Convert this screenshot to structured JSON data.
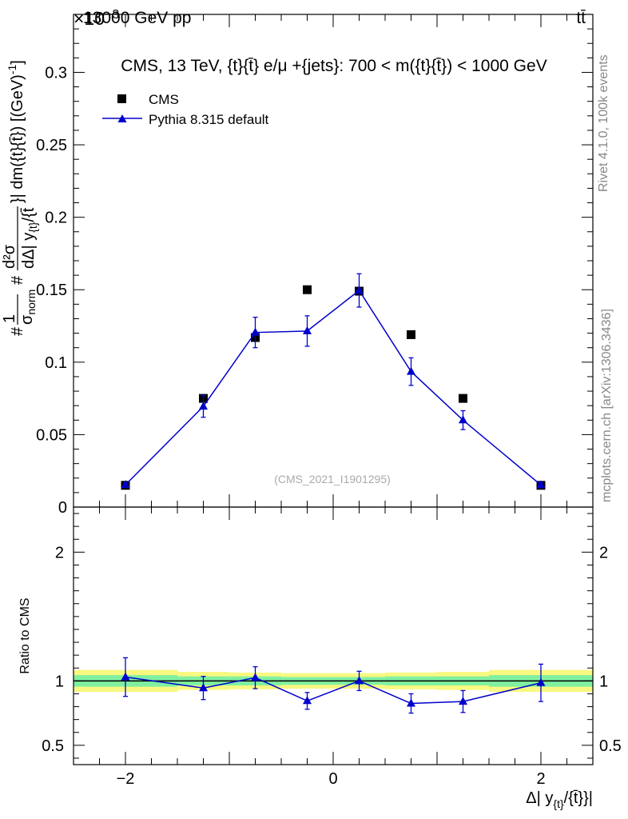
{
  "header": {
    "left": "13000 GeV pp",
    "right": "tt̄",
    "exponent": "×10",
    "exponent_power": "−3"
  },
  "side_text": {
    "rivet": "Rivet 4.1.0,  100k events",
    "mcplots": "mcplots.cern.ch [arXiv:1306.3436]"
  },
  "chart_data": [
    {
      "type": "scatter",
      "panel": "main",
      "title": "CMS, 13 TeV, {t}{t̄} e/μ +{jets}: 700 < m({t}{t̄}) < 1000 GeV",
      "watermark": "(CMS_2021_I1901295)",
      "ylabel": "#1/σ_norm # d²σ/dΔ| y_{t}/{t̄}| dm({t}{t̄}) [(GeV)⁻¹]",
      "ylabel_parts": {
        "hash1": "#",
        "one": "1",
        "sigma": "σ",
        "norm": "norm",
        "hash2": "#",
        "d2sigma": "d²σ",
        "dDelta": "dΔ| y",
        "yt_sub": "{t}",
        "slash": "/{t̄",
        "rest": "}| dm({t}{t̄}) [(GeV)",
        "exp": "-1",
        "close": "]"
      },
      "xlim": [
        -2.5,
        2.5
      ],
      "ylim": [
        0,
        0.34
      ],
      "yticks": [
        0,
        0.05,
        0.1,
        0.15,
        0.2,
        0.25,
        0.3
      ],
      "ytick_labels": [
        "0",
        "0.05",
        "0.1",
        "0.15",
        "0.2",
        "0.25",
        "0.3"
      ],
      "legend_position": "top-left",
      "series": [
        {
          "name": "CMS",
          "marker": "square",
          "color": "#000000",
          "x": [
            -2.0,
            -1.25,
            -0.75,
            -0.25,
            0.25,
            0.75,
            1.25,
            2.0
          ],
          "y": [
            0.015,
            0.075,
            0.117,
            0.15,
            0.149,
            0.119,
            0.075,
            0.015
          ]
        },
        {
          "name": "Pythia 8.315 default",
          "marker": "triangle",
          "color": "#0000cc",
          "x": [
            -2.0,
            -1.25,
            -0.75,
            -0.25,
            0.25,
            0.75,
            1.25,
            2.0
          ],
          "y": [
            0.0153,
            0.0695,
            0.1205,
            0.1215,
            0.1495,
            0.0935,
            0.06,
            0.0152
          ],
          "err": [
            0.0015,
            0.0075,
            0.0105,
            0.0105,
            0.0115,
            0.0095,
            0.0065,
            0.0018
          ]
        }
      ]
    },
    {
      "type": "scatter",
      "panel": "ratio",
      "ylabel": "Ratio to CMS",
      "xlabel": "Δ| y_{t}/{t̄}}|",
      "xlabel_parts": {
        "main": "Δ| y",
        "sub": "{t}",
        "rest": "/{t̄}}|"
      },
      "xlim": [
        -2.5,
        2.5
      ],
      "ylim": [
        0.35,
        2.35
      ],
      "yticks": [
        0.5,
        1,
        2
      ],
      "ytick_labels": [
        "0.5",
        "1",
        "2"
      ],
      "xticks": [
        -2,
        0,
        2
      ],
      "xtick_labels": [
        "−2",
        "0",
        "2"
      ],
      "bands": {
        "edges": [
          -2.5,
          -1.5,
          -1.0,
          -0.5,
          0.0,
          0.5,
          1.0,
          1.5,
          2.5
        ],
        "inner": [
          0.045,
          0.035,
          0.035,
          0.03,
          0.03,
          0.035,
          0.035,
          0.045
        ],
        "outer": [
          0.085,
          0.07,
          0.065,
          0.06,
          0.06,
          0.065,
          0.07,
          0.085
        ],
        "inner_color": "#80f0a0",
        "outer_color": "#f8f880"
      },
      "series": [
        {
          "name": "Pythia 8.315 default",
          "color": "#0000cc",
          "x": [
            -2.0,
            -1.25,
            -0.75,
            -0.25,
            0.25,
            0.75,
            1.25,
            2.0
          ],
          "y": [
            1.03,
            0.945,
            1.025,
            0.845,
            1.0,
            0.825,
            0.84,
            0.985
          ],
          "err": [
            0.15,
            0.09,
            0.085,
            0.065,
            0.075,
            0.075,
            0.085,
            0.145
          ]
        }
      ]
    }
  ]
}
